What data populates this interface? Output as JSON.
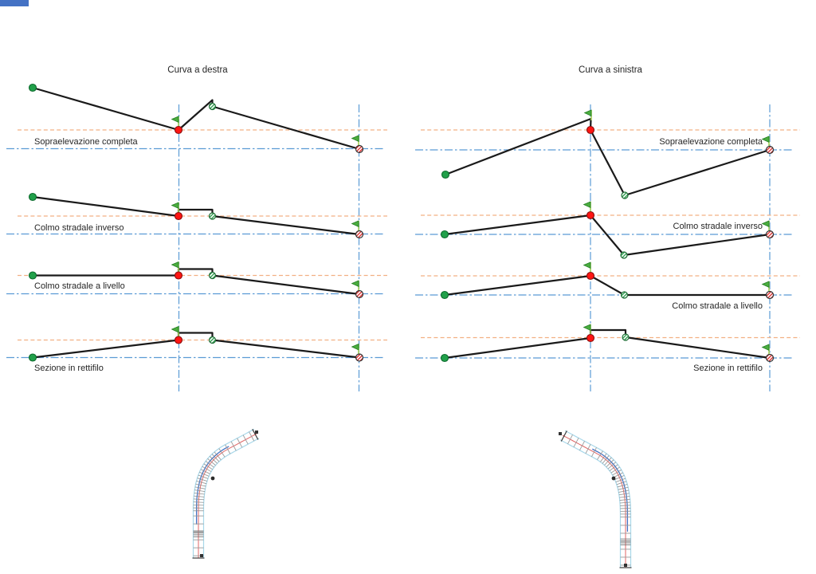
{
  "columns": [
    {
      "id": "curva-a-destra",
      "title": "Curva a destra",
      "labels": [
        "Sopraelevazione completa",
        "Colmo stradale inverso",
        "Colmo stradale a livello",
        "Sezione in rettifilo"
      ]
    },
    {
      "id": "curva-a-sinistra",
      "title": "Curva a sinistra",
      "labels": [
        "Sopraelevazione completa",
        "Colmo stradale inverso",
        "Colmo stradale a livello",
        "Sezione in rettifilo"
      ]
    }
  ],
  "colors": {
    "corner_bar": "#4472c4",
    "superelevation_axis_orange": "#f2b083",
    "pivot_axis_blue": "#5b9bd5",
    "profile_line": "#1a1a1a",
    "start_grip_green": "#21a04a",
    "pivot_grip_red": "#ff1512",
    "edge_grip_green_hatch": "#2e9e4f",
    "end_grip_red_hatch": "#e03030",
    "flag_green": "#4bad3f",
    "flag_pole": "#a6d157",
    "road_edge": "#a8d8ea",
    "road_centerline": "#e06666",
    "section_ticks": "#8f8f8f",
    "plan_blue_line": "#4472c4"
  },
  "icons": {
    "flag": "grip-flag-icon",
    "start": "start-grip-icon",
    "pivot": "pivot-grip-icon",
    "edge": "edge-grip-icon",
    "end": "end-grip-icon"
  }
}
